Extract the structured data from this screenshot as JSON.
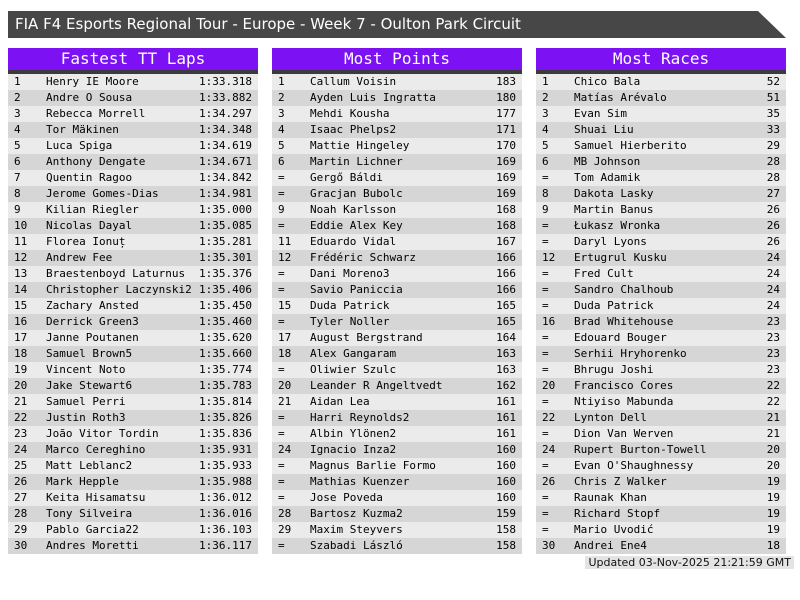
{
  "title_bar": {
    "text": "FIA F4 Esports Regional Tour - Europe - Week 7 - Oulton Park Circuit"
  },
  "colors": {
    "title_bar_bg": "#474747",
    "header_bg": "#7C11F4",
    "separator": "#3B3B3B",
    "row_light": "#EBEBEB",
    "row_dark": "#D6D6D6",
    "footer_bg": "#E4E4E4"
  },
  "tables": [
    {
      "header": "Fastest TT Laps",
      "rows": [
        [
          "1",
          "Henry IE Moore",
          "1:33.318"
        ],
        [
          "2",
          "Andre O Sousa",
          "1:33.882"
        ],
        [
          "3",
          "Rebecca Morrell",
          "1:34.297"
        ],
        [
          "4",
          "Tor Mäkinen",
          "1:34.348"
        ],
        [
          "5",
          "Luca Spiga",
          "1:34.619"
        ],
        [
          "6",
          "Anthony Dengate",
          "1:34.671"
        ],
        [
          "7",
          "Quentin Ragoo",
          "1:34.842"
        ],
        [
          "8",
          "Jerome Gomes-Dias",
          "1:34.981"
        ],
        [
          "9",
          "Kilian Riegler",
          "1:35.000"
        ],
        [
          "10",
          "Nicolas Dayal",
          "1:35.085"
        ],
        [
          "11",
          "Florea Ionuț",
          "1:35.281"
        ],
        [
          "12",
          "Andrew Fee",
          "1:35.301"
        ],
        [
          "13",
          "Braestenboyd Laturnus",
          "1:35.376"
        ],
        [
          "14",
          "Christopher Laczynski2",
          "1:35.406"
        ],
        [
          "15",
          "Zachary Ansted",
          "1:35.450"
        ],
        [
          "16",
          "Derrick Green3",
          "1:35.460"
        ],
        [
          "17",
          "Janne Poutanen",
          "1:35.620"
        ],
        [
          "18",
          "Samuel Brown5",
          "1:35.660"
        ],
        [
          "19",
          "Vincent Noto",
          "1:35.774"
        ],
        [
          "20",
          "Jake Stewart6",
          "1:35.783"
        ],
        [
          "21",
          "Samuel Perri",
          "1:35.814"
        ],
        [
          "22",
          "Justin Roth3",
          "1:35.826"
        ],
        [
          "23",
          "João Vitor Tordin",
          "1:35.836"
        ],
        [
          "24",
          "Marco Cereghino",
          "1:35.931"
        ],
        [
          "25",
          "Matt Leblanc2",
          "1:35.933"
        ],
        [
          "26",
          "Mark Hepple",
          "1:35.988"
        ],
        [
          "27",
          "Keita Hisamatsu",
          "1:36.012"
        ],
        [
          "28",
          "Tony Silveira",
          "1:36.016"
        ],
        [
          "29",
          "Pablo Garcia22",
          "1:36.103"
        ],
        [
          "30",
          "Andres Moretti",
          "1:36.117"
        ]
      ]
    },
    {
      "header": "Most Points",
      "rows": [
        [
          "1",
          "Callum Voisin",
          "183"
        ],
        [
          "2",
          "Ayden Luis Ingratta",
          "180"
        ],
        [
          "3",
          "Mehdi Kousha",
          "177"
        ],
        [
          "4",
          "Isaac Phelps2",
          "171"
        ],
        [
          "5",
          "Mattie Hingeley",
          "170"
        ],
        [
          "6",
          "Martin Lichner",
          "169"
        ],
        [
          "=",
          "Gergő Báldi",
          "169"
        ],
        [
          "=",
          "Gracjan Bubolc",
          "169"
        ],
        [
          "9",
          "Noah Karlsson",
          "168"
        ],
        [
          "=",
          "Eddie Alex Key",
          "168"
        ],
        [
          "11",
          "Eduardo Vidal",
          "167"
        ],
        [
          "12",
          "Frédéric Schwarz",
          "166"
        ],
        [
          "=",
          "Dani Moreno3",
          "166"
        ],
        [
          "=",
          "Savio Paniccia",
          "166"
        ],
        [
          "15",
          "Duda Patrick",
          "165"
        ],
        [
          "=",
          "Tyler Noller",
          "165"
        ],
        [
          "17",
          "August Bergstrand",
          "164"
        ],
        [
          "18",
          "Alex Gangaram",
          "163"
        ],
        [
          "=",
          "Oliwier Szulc",
          "163"
        ],
        [
          "20",
          "Leander R Angeltvedt",
          "162"
        ],
        [
          "21",
          "Aidan Lea",
          "161"
        ],
        [
          "=",
          "Harri Reynolds2",
          "161"
        ],
        [
          "=",
          "Albin Ylönen2",
          "161"
        ],
        [
          "24",
          "Ignacio Inza2",
          "160"
        ],
        [
          "=",
          "Magnus Barlie Formo",
          "160"
        ],
        [
          "=",
          "Mathias Kuenzer",
          "160"
        ],
        [
          "=",
          "Jose Poveda",
          "160"
        ],
        [
          "28",
          "Bartosz Kuzma2",
          "159"
        ],
        [
          "29",
          "Maxim Steyvers",
          "158"
        ],
        [
          "=",
          "Szabadi László",
          "158"
        ]
      ]
    },
    {
      "header": "Most Races",
      "rows": [
        [
          "1",
          "Chico Bala",
          "52"
        ],
        [
          "2",
          "Matías Arévalo",
          "51"
        ],
        [
          "3",
          "Evan Sim",
          "35"
        ],
        [
          "4",
          "Shuai Liu",
          "33"
        ],
        [
          "5",
          "Samuel Hierberito",
          "29"
        ],
        [
          "6",
          "MB Johnson",
          "28"
        ],
        [
          "=",
          "Tom Adamik",
          "28"
        ],
        [
          "8",
          "Dakota Lasky",
          "27"
        ],
        [
          "9",
          "Martin Banus",
          "26"
        ],
        [
          "=",
          "Łukasz Wronka",
          "26"
        ],
        [
          "=",
          "Daryl Lyons",
          "26"
        ],
        [
          "12",
          "Ertugrul Kusku",
          "24"
        ],
        [
          "=",
          "Fred Cult",
          "24"
        ],
        [
          "=",
          "Sandro Chalhoub",
          "24"
        ],
        [
          "=",
          "Duda Patrick",
          "24"
        ],
        [
          "16",
          "Brad Whitehouse",
          "23"
        ],
        [
          "=",
          "Edouard Bouger",
          "23"
        ],
        [
          "=",
          "Serhii Hryhorenko",
          "23"
        ],
        [
          "=",
          "Bhrugu Joshi",
          "23"
        ],
        [
          "20",
          "Francisco Cores",
          "22"
        ],
        [
          "=",
          "Ntiyiso Mabunda",
          "22"
        ],
        [
          "22",
          "Lynton Dell",
          "21"
        ],
        [
          "=",
          "Dion Van Werven",
          "21"
        ],
        [
          "24",
          "Rupert Burton-Towell",
          "20"
        ],
        [
          "=",
          "Evan O'Shaughnessy",
          "20"
        ],
        [
          "26",
          "Chris Z Walker",
          "19"
        ],
        [
          "=",
          "Raunak Khan",
          "19"
        ],
        [
          "=",
          "Richard Stopf",
          "19"
        ],
        [
          "=",
          "Mario Uvodić",
          "19"
        ],
        [
          "30",
          "Andrei Ene4",
          "18"
        ]
      ]
    }
  ],
  "footer": {
    "updated": "Updated 03-Nov-2025 21:21:59 GMT"
  }
}
